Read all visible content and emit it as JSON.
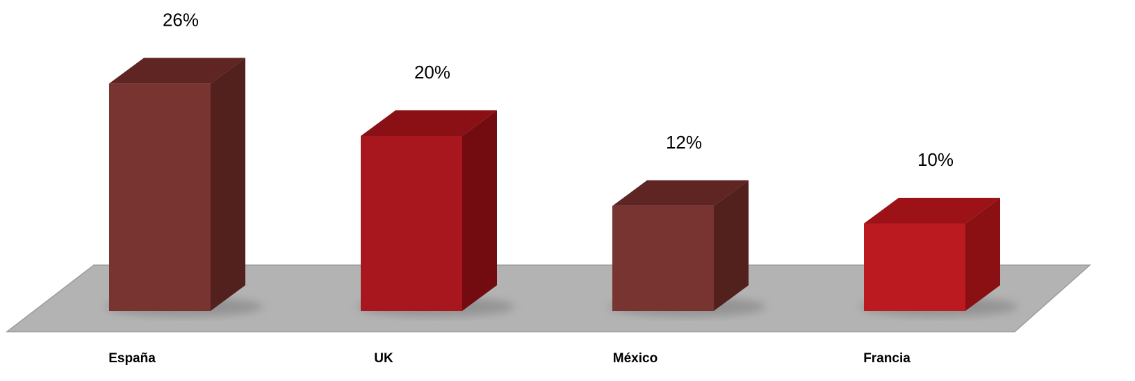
{
  "chart_data": {
    "type": "bar",
    "title": "",
    "xlabel": "",
    "ylabel": "",
    "categories": [
      "España",
      "UK",
      "México",
      "Francia"
    ],
    "values": [
      26,
      20,
      12,
      10
    ],
    "value_labels": [
      "26%",
      "20%",
      "12%",
      "10%"
    ],
    "ylim": [
      0,
      30
    ],
    "grid": false,
    "legend": "none",
    "style": "3d-column",
    "colors": {
      "dark_brown_front": "#783431",
      "dark_brown_side": "#52201d",
      "dark_brown_top": "#5e2522",
      "red_front": "#a8171e",
      "red_side": "#730c10",
      "red_top": "#8a1015",
      "red_bright_front": "#bb1a20",
      "red_bright_side": "#8a1014",
      "red_bright_top": "#9c1217",
      "floor": "#b3b3b3",
      "floor_edge": "#9c9c9c"
    },
    "bar_color_keys": [
      "dark_brown",
      "red",
      "dark_brown",
      "red_bright"
    ]
  }
}
